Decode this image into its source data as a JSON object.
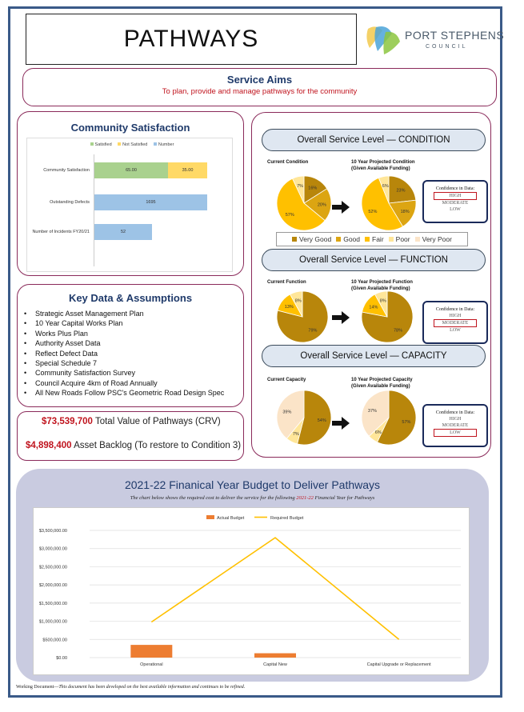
{
  "title": "PATHWAYS",
  "logo": {
    "line1": "PORT STEPHENS",
    "line2": "COUNCIL"
  },
  "service_aims": {
    "heading": "Service Aims",
    "text": "To plan, provide and manage pathways for the community"
  },
  "community_satisfaction": {
    "heading": "Community Satisfaction",
    "legend": [
      {
        "label": "Satisfied",
        "color": "#a9d18e"
      },
      {
        "label": "Not Satisfied",
        "color": "#ffd966"
      },
      {
        "label": "Number",
        "color": "#9dc3e6"
      }
    ],
    "rows": [
      {
        "label": "Community Satisfaction",
        "satisfied": "65.00",
        "not_satisfied": "35.00"
      },
      {
        "label": "Outstanding Defects",
        "number": "1695"
      },
      {
        "label": "Number of Incidents FY20/21",
        "number": "52"
      }
    ]
  },
  "key_data": {
    "heading": "Key Data & Assumptions",
    "items": [
      "Strategic Asset Management Plan",
      "10 Year Capital Works Plan",
      "Works Plus Plan",
      "Authority Asset Data",
      "Reflect Defect Data",
      "Special Schedule 7",
      "Community Satisfaction Survey",
      "Council Acquire 4km of Road Annually",
      "All New Roads Follow PSC's Geometric Road Design Spec"
    ]
  },
  "crv": {
    "total_amount": "$73,539,700",
    "total_label": "Total Value of Pathways (CRV)",
    "backlog_amount": "$4,898,400",
    "backlog_label": "Asset Backlog (To restore to Condition 3)"
  },
  "service_levels": {
    "condition": {
      "heading": "Overall Service Level — CONDITION",
      "current_title": "Current Condition",
      "projected_title": "10 Year Projected Condition",
      "projected_sub": "(Given Available Funding)",
      "current": [
        {
          "cat": "Very Good",
          "pct": 16
        },
        {
          "cat": "Good",
          "pct": 20
        },
        {
          "cat": "Fair",
          "pct": 57
        },
        {
          "cat": "Poor",
          "pct": 7
        }
      ],
      "projected": [
        {
          "cat": "Very Good",
          "pct": 23
        },
        {
          "cat": "Good",
          "pct": 18
        },
        {
          "cat": "Fair",
          "pct": 52
        },
        {
          "cat": "Poor",
          "pct": 6
        }
      ],
      "confidence": {
        "title": "Confidence in Data:",
        "levels": [
          "HIGH",
          "MODERATE",
          "LOW"
        ],
        "selected": "HIGH"
      }
    },
    "function": {
      "heading": "Overall Service Level — FUNCTION",
      "current_title": "Current Function",
      "projected_title": "10 Year Projected Function",
      "projected_sub": "(Given Available Funding)",
      "current": [
        {
          "cat": "Very Good",
          "pct": 79
        },
        {
          "cat": "Fair",
          "pct": 13
        },
        {
          "cat": "Poor",
          "pct": 8
        }
      ],
      "projected": [
        {
          "cat": "Very Good",
          "pct": 78
        },
        {
          "cat": "Fair",
          "pct": 14
        },
        {
          "cat": "Poor",
          "pct": 8
        }
      ],
      "confidence": {
        "title": "Confidence in Data:",
        "levels": [
          "HIGH",
          "MODERATE",
          "LOW"
        ],
        "selected": "MODERATE"
      }
    },
    "capacity": {
      "heading": "Overall Service Level — CAPACITY",
      "current_title": "Current Capacity",
      "projected_title": "10 Year Projected Capacity",
      "projected_sub": "(Given Available Funding)",
      "current": [
        {
          "cat": "Very Good",
          "pct": 54
        },
        {
          "cat": "Poor",
          "pct": 7
        },
        {
          "cat": "Very Poor",
          "pct": 39
        }
      ],
      "projected": [
        {
          "cat": "Very Good",
          "pct": 57
        },
        {
          "cat": "Poor",
          "pct": 6
        },
        {
          "cat": "Very Poor",
          "pct": 37
        }
      ],
      "confidence": {
        "title": "Confidence in Data:",
        "levels": [
          "HIGH",
          "MODERATE",
          "LOW"
        ],
        "selected": "LOW"
      }
    },
    "legend": [
      "Very Good",
      "Good",
      "Fair",
      "Poor",
      "Very Poor"
    ],
    "colors": {
      "Very Good": "#b8860b",
      "Good": "#dca512",
      "Fair": "#ffc000",
      "Poor": "#ffe699",
      "Very Poor": "#fbe4c8"
    }
  },
  "budget": {
    "heading": "2021-22 Finanical Year Budget to Deliver Pathways",
    "sub_pre": "The chart below shows the required cost to deliver the service for the following ",
    "sub_year": "2021-22",
    "sub_post": " Financial Year for Pathways"
  },
  "chart_data": {
    "type": "bar",
    "categories": [
      "Operational",
      "Capital New",
      "Capital Upgrade or Replacement"
    ],
    "series": [
      {
        "name": "Actual Budget",
        "type": "bar",
        "color": "#ed7d31",
        "values": [
          350000,
          120000,
          0
        ]
      },
      {
        "name": "Required Budget",
        "type": "line",
        "color": "#ffc000",
        "values": [
          980000,
          3300000,
          500000
        ]
      }
    ],
    "yticks": [
      "$0.00",
      "$500,000.00",
      "$1,000,000.00",
      "$1,500,000.00",
      "$2,000,000.00",
      "$2,500,000.00",
      "$3,000,000.00",
      "$3,500,000.00"
    ],
    "ylim": [
      0,
      3500000
    ],
    "grid": true,
    "legend_position": "top"
  },
  "footer": {
    "lead": "Working Document—",
    "text": "This document has been developed on the best available information and continues to be refined."
  }
}
